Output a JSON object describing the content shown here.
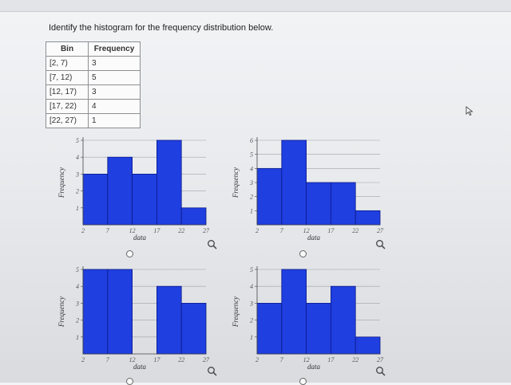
{
  "question": "Identify the histogram for the frequency distribution below.",
  "table": {
    "headers": [
      "Bin",
      "Frequency"
    ],
    "rows": [
      {
        "bin": "[2, 7)",
        "freq": "3"
      },
      {
        "bin": "[7, 12)",
        "freq": "5"
      },
      {
        "bin": "[12, 17)",
        "freq": "3"
      },
      {
        "bin": "[17, 22)",
        "freq": "4"
      },
      {
        "bin": "[22, 27)",
        "freq": "1"
      }
    ]
  },
  "colors": {
    "bar": "#1f3fe0",
    "bar_edge": "#0b1a8a",
    "grid": "#9ea3aa"
  },
  "icons": {
    "zoom": "magnifier-icon",
    "choice": "radio-button-icon"
  },
  "chart_data": [
    {
      "type": "bar",
      "bin_edges": [
        2,
        7,
        12,
        17,
        22,
        27
      ],
      "values": [
        3,
        4,
        3,
        5,
        1
      ],
      "xlabel": "data",
      "ylabel": "Frequency",
      "ylim": [
        0,
        5
      ],
      "yticks": [
        "1",
        "2",
        "3",
        "4",
        "5"
      ],
      "xticks": [
        "2",
        "7",
        "12",
        "17",
        "22",
        "27"
      ]
    },
    {
      "type": "bar",
      "bin_edges": [
        2,
        7,
        12,
        17,
        22,
        27
      ],
      "values": [
        4,
        6,
        3,
        3,
        1
      ],
      "xlabel": "data",
      "ylabel": "Frequency",
      "ylim": [
        0,
        6
      ],
      "yticks": [
        "1",
        "2",
        "3",
        "4",
        "5",
        "6"
      ],
      "xticks": [
        "2",
        "7",
        "12",
        "17",
        "22",
        "27"
      ]
    },
    {
      "type": "bar",
      "bin_edges": [
        2,
        7,
        12,
        17,
        22,
        27
      ],
      "values": [
        5,
        5,
        0,
        4,
        3
      ],
      "xlabel": "data",
      "ylabel": "Frequency",
      "ylim": [
        0,
        5
      ],
      "yticks": [
        "1",
        "2",
        "3",
        "4",
        "5"
      ],
      "xticks": [
        "2",
        "7",
        "12",
        "17",
        "22",
        "27"
      ]
    },
    {
      "type": "bar",
      "bin_edges": [
        2,
        7,
        12,
        17,
        22,
        27
      ],
      "values": [
        3,
        5,
        3,
        4,
        1
      ],
      "xlabel": "data",
      "ylabel": "Frequency",
      "ylim": [
        0,
        5
      ],
      "yticks": [
        "1",
        "2",
        "3",
        "4",
        "5"
      ],
      "xticks": [
        "2",
        "7",
        "12",
        "17",
        "22",
        "27"
      ]
    }
  ]
}
